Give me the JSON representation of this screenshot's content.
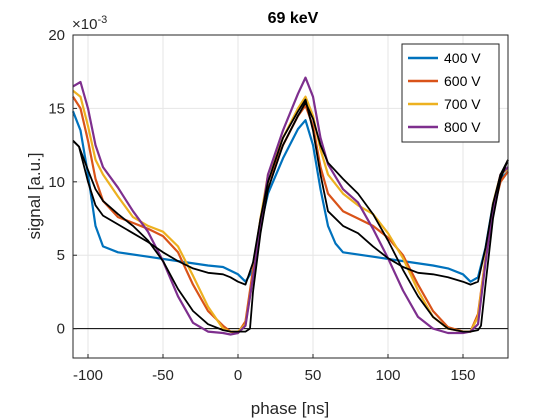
{
  "chart_data": {
    "type": "line",
    "title": "69 keV",
    "xlabel": "phase [ns]",
    "ylabel": "signal [a.u.]",
    "y_exponent_label": "×10",
    "y_exponent_power": "-3",
    "xlim": [
      -110,
      180
    ],
    "ylim": [
      -2,
      20
    ],
    "xticks": [
      -100,
      -50,
      0,
      50,
      100,
      150
    ],
    "yticks": [
      0,
      5,
      10,
      15,
      20
    ],
    "grid": true,
    "legend_position": "top-right",
    "reference_line_y": 0,
    "series": [
      {
        "name": "400 V",
        "color": "#0072BD",
        "points": [
          [
            -110,
            14.8
          ],
          [
            -105,
            13.5
          ],
          [
            -100,
            10.5
          ],
          [
            -95,
            7.0
          ],
          [
            -90,
            5.6
          ],
          [
            -80,
            5.2
          ],
          [
            -60,
            4.9
          ],
          [
            -40,
            4.6
          ],
          [
            -20,
            4.3
          ],
          [
            -10,
            4.2
          ],
          [
            0,
            3.7
          ],
          [
            5,
            3.2
          ],
          [
            10,
            4.0
          ],
          [
            15,
            7.0
          ],
          [
            20,
            9.2
          ],
          [
            30,
            11.6
          ],
          [
            40,
            13.6
          ],
          [
            45,
            14.2
          ],
          [
            50,
            12.5
          ],
          [
            55,
            9.5
          ],
          [
            60,
            7.0
          ],
          [
            65,
            5.8
          ],
          [
            70,
            5.2
          ],
          [
            90,
            4.9
          ],
          [
            110,
            4.6
          ],
          [
            130,
            4.3
          ],
          [
            140,
            4.1
          ],
          [
            150,
            3.7
          ],
          [
            155,
            3.2
          ],
          [
            160,
            3.5
          ],
          [
            165,
            5.5
          ],
          [
            170,
            8.5
          ],
          [
            175,
            10.2
          ],
          [
            180,
            10.7
          ]
        ]
      },
      {
        "name": "600 V",
        "color": "#D95319",
        "points": [
          [
            -110,
            15.8
          ],
          [
            -105,
            15.0
          ],
          [
            -100,
            12.8
          ],
          [
            -95,
            10.2
          ],
          [
            -90,
            8.7
          ],
          [
            -80,
            7.6
          ],
          [
            -70,
            7.2
          ],
          [
            -60,
            6.8
          ],
          [
            -50,
            6.3
          ],
          [
            -40,
            5.2
          ],
          [
            -30,
            3.0
          ],
          [
            -20,
            1.2
          ],
          [
            -10,
            0.2
          ],
          [
            -5,
            -0.2
          ],
          [
            0,
            -0.3
          ],
          [
            5,
            0.5
          ],
          [
            10,
            4.0
          ],
          [
            15,
            7.5
          ],
          [
            20,
            10.0
          ],
          [
            30,
            12.5
          ],
          [
            40,
            14.5
          ],
          [
            45,
            15.2
          ],
          [
            50,
            13.8
          ],
          [
            55,
            11.0
          ],
          [
            60,
            9.2
          ],
          [
            70,
            8.0
          ],
          [
            80,
            7.5
          ],
          [
            90,
            7.0
          ],
          [
            100,
            6.2
          ],
          [
            110,
            5.0
          ],
          [
            120,
            3.0
          ],
          [
            130,
            1.2
          ],
          [
            140,
            0.1
          ],
          [
            150,
            -0.2
          ],
          [
            155,
            -0.2
          ],
          [
            160,
            1.0
          ],
          [
            165,
            4.8
          ],
          [
            170,
            8.0
          ],
          [
            175,
            10.0
          ],
          [
            180,
            10.7
          ]
        ]
      },
      {
        "name": "700 V",
        "color": "#EDB120",
        "points": [
          [
            -110,
            16.2
          ],
          [
            -105,
            15.8
          ],
          [
            -100,
            13.8
          ],
          [
            -95,
            11.5
          ],
          [
            -90,
            10.5
          ],
          [
            -80,
            9.0
          ],
          [
            -70,
            7.6
          ],
          [
            -60,
            7.0
          ],
          [
            -50,
            6.6
          ],
          [
            -40,
            5.6
          ],
          [
            -30,
            3.6
          ],
          [
            -20,
            1.5
          ],
          [
            -10,
            0.0
          ],
          [
            -5,
            -0.2
          ],
          [
            0,
            -0.2
          ],
          [
            5,
            0.3
          ],
          [
            10,
            3.5
          ],
          [
            15,
            7.5
          ],
          [
            20,
            10.5
          ],
          [
            30,
            13.0
          ],
          [
            40,
            15.0
          ],
          [
            45,
            15.8
          ],
          [
            50,
            14.5
          ],
          [
            55,
            12.2
          ],
          [
            60,
            10.5
          ],
          [
            70,
            9.2
          ],
          [
            80,
            8.4
          ],
          [
            90,
            7.8
          ],
          [
            100,
            6.5
          ],
          [
            110,
            4.8
          ],
          [
            120,
            2.6
          ],
          [
            130,
            0.8
          ],
          [
            140,
            0.0
          ],
          [
            150,
            -0.2
          ],
          [
            155,
            -0.2
          ],
          [
            160,
            0.8
          ],
          [
            165,
            4.8
          ],
          [
            170,
            8.5
          ],
          [
            175,
            10.5
          ],
          [
            180,
            10.9
          ]
        ]
      },
      {
        "name": "800 V",
        "color": "#7E2F8E",
        "points": [
          [
            -110,
            16.5
          ],
          [
            -105,
            16.8
          ],
          [
            -100,
            15.0
          ],
          [
            -95,
            12.5
          ],
          [
            -90,
            11.0
          ],
          [
            -80,
            9.6
          ],
          [
            -70,
            8.0
          ],
          [
            -60,
            6.6
          ],
          [
            -50,
            4.6
          ],
          [
            -40,
            2.2
          ],
          [
            -30,
            0.4
          ],
          [
            -20,
            -0.2
          ],
          [
            -10,
            -0.3
          ],
          [
            -5,
            -0.4
          ],
          [
            0,
            -0.3
          ],
          [
            5,
            0.2
          ],
          [
            10,
            3.5
          ],
          [
            15,
            7.0
          ],
          [
            20,
            10.5
          ],
          [
            30,
            13.5
          ],
          [
            40,
            16.0
          ],
          [
            45,
            17.1
          ],
          [
            50,
            15.8
          ],
          [
            55,
            13.0
          ],
          [
            60,
            11.2
          ],
          [
            70,
            9.5
          ],
          [
            80,
            8.6
          ],
          [
            90,
            6.8
          ],
          [
            100,
            4.8
          ],
          [
            110,
            2.6
          ],
          [
            120,
            0.8
          ],
          [
            130,
            0.0
          ],
          [
            140,
            -0.3
          ],
          [
            150,
            -0.3
          ],
          [
            155,
            -0.2
          ],
          [
            160,
            0.3
          ],
          [
            165,
            4.5
          ],
          [
            170,
            8.2
          ],
          [
            175,
            10.5
          ],
          [
            180,
            11.0
          ]
        ]
      },
      {
        "name": "",
        "color": "#000000",
        "points": [
          [
            -110,
            12.8
          ],
          [
            -106,
            12.4
          ],
          [
            -100,
            10.8
          ],
          [
            -95,
            9.5
          ],
          [
            -90,
            8.7
          ],
          [
            -80,
            7.8
          ],
          [
            -70,
            7.0
          ],
          [
            -60,
            6.0
          ],
          [
            -50,
            4.6
          ],
          [
            -40,
            2.7
          ],
          [
            -30,
            1.2
          ],
          [
            -20,
            0.3
          ],
          [
            -10,
            -0.1
          ],
          [
            -5,
            -0.2
          ],
          [
            0,
            -0.2
          ],
          [
            5,
            -0.2
          ],
          [
            8,
            0.0
          ],
          [
            10,
            2.5
          ],
          [
            15,
            6.5
          ],
          [
            20,
            9.5
          ],
          [
            30,
            12.5
          ],
          [
            40,
            14.5
          ],
          [
            45,
            15.4
          ],
          [
            50,
            14.3
          ],
          [
            55,
            12.5
          ],
          [
            60,
            11.3
          ],
          [
            70,
            10.2
          ],
          [
            80,
            9.2
          ],
          [
            90,
            7.8
          ],
          [
            100,
            6.0
          ],
          [
            110,
            4.0
          ],
          [
            120,
            2.2
          ],
          [
            130,
            0.8
          ],
          [
            140,
            0.0
          ],
          [
            150,
            -0.2
          ],
          [
            155,
            -0.2
          ],
          [
            160,
            -0.1
          ],
          [
            162,
            0.2
          ],
          [
            165,
            3.0
          ],
          [
            170,
            7.5
          ],
          [
            175,
            10.2
          ],
          [
            180,
            11.5
          ]
        ]
      },
      {
        "name": "",
        "color": "#000000",
        "points": [
          [
            -110,
            12.8
          ],
          [
            -106,
            12.4
          ],
          [
            -100,
            10.0
          ],
          [
            -95,
            8.4
          ],
          [
            -90,
            7.7
          ],
          [
            -80,
            7.1
          ],
          [
            -70,
            6.5
          ],
          [
            -60,
            5.9
          ],
          [
            -50,
            5.2
          ],
          [
            -40,
            4.6
          ],
          [
            -30,
            4.1
          ],
          [
            -20,
            3.8
          ],
          [
            -10,
            3.7
          ],
          [
            -5,
            3.5
          ],
          [
            0,
            3.2
          ],
          [
            5,
            3.0
          ],
          [
            10,
            4.5
          ],
          [
            15,
            7.5
          ],
          [
            20,
            10.0
          ],
          [
            30,
            13.0
          ],
          [
            40,
            14.8
          ],
          [
            45,
            15.6
          ],
          [
            50,
            13.5
          ],
          [
            55,
            10.5
          ],
          [
            60,
            8.0
          ],
          [
            70,
            7.0
          ],
          [
            80,
            6.5
          ],
          [
            90,
            5.6
          ],
          [
            100,
            4.8
          ],
          [
            110,
            4.2
          ],
          [
            120,
            3.8
          ],
          [
            130,
            3.7
          ],
          [
            140,
            3.5
          ],
          [
            150,
            3.2
          ],
          [
            155,
            3.0
          ],
          [
            160,
            3.2
          ],
          [
            165,
            5.5
          ],
          [
            170,
            8.5
          ],
          [
            175,
            10.5
          ],
          [
            180,
            11.5
          ]
        ]
      }
    ]
  }
}
